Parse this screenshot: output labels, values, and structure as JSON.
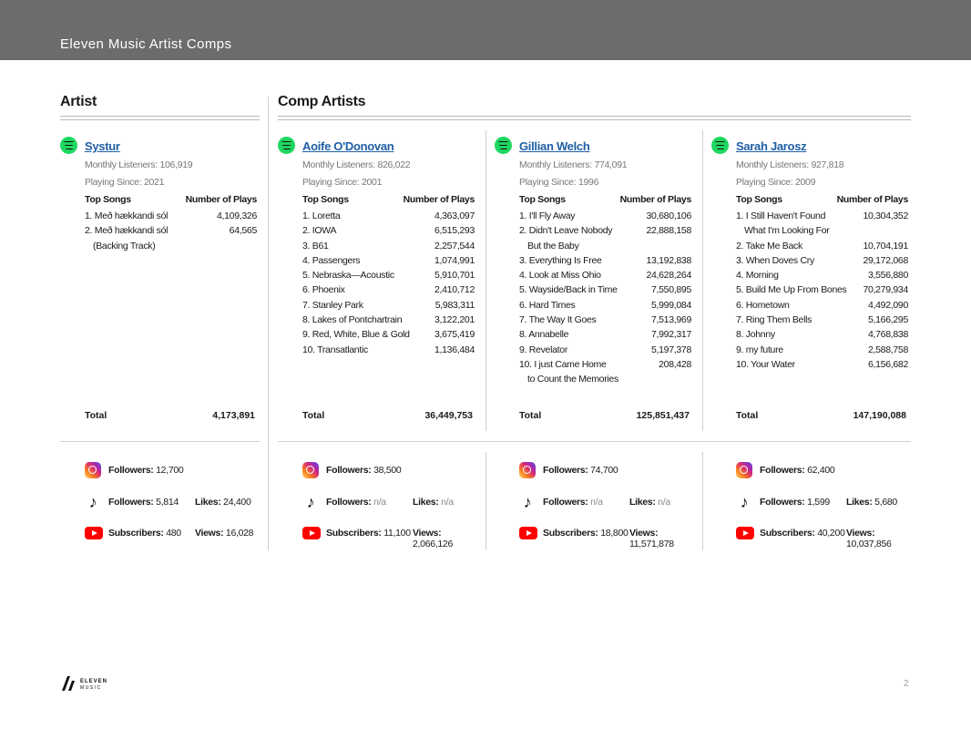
{
  "header": {
    "title": "Eleven Music Artist Comps"
  },
  "sections": {
    "artist": "Artist",
    "comps": "Comp Artists"
  },
  "labels": {
    "monthly_listeners": "Monthly Listeners:",
    "playing_since": "Playing Since:",
    "top_songs": "Top Songs",
    "number_of_plays": "Number of Plays",
    "total": "Total",
    "followers": "Followers:",
    "likes": "Likes:",
    "subscribers": "Subscribers:",
    "views": "Views:"
  },
  "artists": [
    {
      "name": "Systur",
      "monthly_listeners": "106,919",
      "playing_since": "2021",
      "songs": [
        {
          "title": "1. Með hækkandi sól",
          "plays": "4,109,326"
        },
        {
          "title": "2. Með hækkandi sól",
          "cont": "(Backing Track)",
          "plays": "64,565"
        }
      ],
      "total": "4,173,891",
      "instagram_followers": "12,700",
      "tiktok_followers": "5,814",
      "tiktok_likes": "24,400",
      "youtube_subscribers": "480",
      "youtube_views": "16,028"
    },
    {
      "name": "Aoife O'Donovan",
      "monthly_listeners": "826,022",
      "playing_since": "2001",
      "songs": [
        {
          "title": "1. Loretta",
          "plays": "4,363,097"
        },
        {
          "title": "2. IOWA",
          "plays": "6,515,293"
        },
        {
          "title": "3. B61",
          "plays": "2,257,544"
        },
        {
          "title": "4. Passengers",
          "plays": "1,074,991"
        },
        {
          "title": "5. Nebraska—Acoustic",
          "plays": "5,910,701"
        },
        {
          "title": "6. Phoenix",
          "plays": "2,410,712"
        },
        {
          "title": "7. Stanley Park",
          "plays": "5,983,311"
        },
        {
          "title": "8. Lakes of Pontchartrain",
          "plays": "3,122,201"
        },
        {
          "title": "9. Red, White, Blue & Gold",
          "plays": "3,675,419"
        },
        {
          "title": "10. Transatlantic",
          "plays": "1,136,484"
        }
      ],
      "total": "36,449,753",
      "instagram_followers": "38,500",
      "tiktok_followers": "n/a",
      "tiktok_likes": "n/a",
      "youtube_subscribers": "11,100",
      "youtube_views": "2,066,126"
    },
    {
      "name": "Gillian Welch",
      "monthly_listeners": "774,091",
      "playing_since": "1996",
      "songs": [
        {
          "title": "1. I'll Fly Away",
          "plays": "30,680,106"
        },
        {
          "title": "2. Didn't Leave Nobody",
          "cont": "But the Baby",
          "plays": "22,888,158"
        },
        {
          "title": "3. Everything Is Free",
          "plays": "13,192,838"
        },
        {
          "title": "4. Look at Miss Ohio",
          "plays": "24,628,264"
        },
        {
          "title": "5. Wayside/Back in Time",
          "plays": "7,550,895"
        },
        {
          "title": "6. Hard Times",
          "plays": "5,999,084"
        },
        {
          "title": "7. The Way It Goes",
          "plays": "7,513,969"
        },
        {
          "title": "8. Annabelle",
          "plays": "7,992,317"
        },
        {
          "title": "9. Revelator",
          "plays": "5,197,378"
        },
        {
          "title": "10. I just Came Home",
          "cont": "to Count the Memories",
          "plays": "208,428"
        }
      ],
      "total": "125,851,437",
      "instagram_followers": "74,700",
      "tiktok_followers": "n/a",
      "tiktok_likes": "n/a",
      "youtube_subscribers": "18,800",
      "youtube_views": "11,571,878"
    },
    {
      "name": "Sarah Jarosz",
      "monthly_listeners": "927,818",
      "playing_since": "2009",
      "songs": [
        {
          "title": "1. I Still Haven't Found",
          "cont": "What I'm Looking For",
          "plays": "10,304,352"
        },
        {
          "title": "2. Take Me Back",
          "plays": "10,704,191"
        },
        {
          "title": "3. When Doves Cry",
          "plays": "29,172,068"
        },
        {
          "title": "4. Morning",
          "plays": "3,556,880"
        },
        {
          "title": "5. Build Me Up From Bones",
          "plays": "70,279,934"
        },
        {
          "title": "6. Hometown",
          "plays": "4,492,090"
        },
        {
          "title": "7. Ring Them Bells",
          "plays": "5,166,295"
        },
        {
          "title": "8. Johnny",
          "plays": "4,768,838"
        },
        {
          "title": "9. my future",
          "plays": "2,588,758"
        },
        {
          "title": "10. Your Water",
          "plays": "6,156,682"
        }
      ],
      "total": "147,190,088",
      "instagram_followers": "62,400",
      "tiktok_followers": "1,599",
      "tiktok_likes": "5,680",
      "youtube_subscribers": "40,200",
      "youtube_views": "10,037,856"
    }
  ],
  "footer": {
    "logo_text_1": "ELEVEN",
    "logo_text_2": "MUSIC",
    "page_number": "2"
  },
  "colors": {
    "header_bg": "#6b6c6e",
    "link": "#1f5fa6",
    "spotify": "#1ed760",
    "youtube": "#ff0000"
  }
}
